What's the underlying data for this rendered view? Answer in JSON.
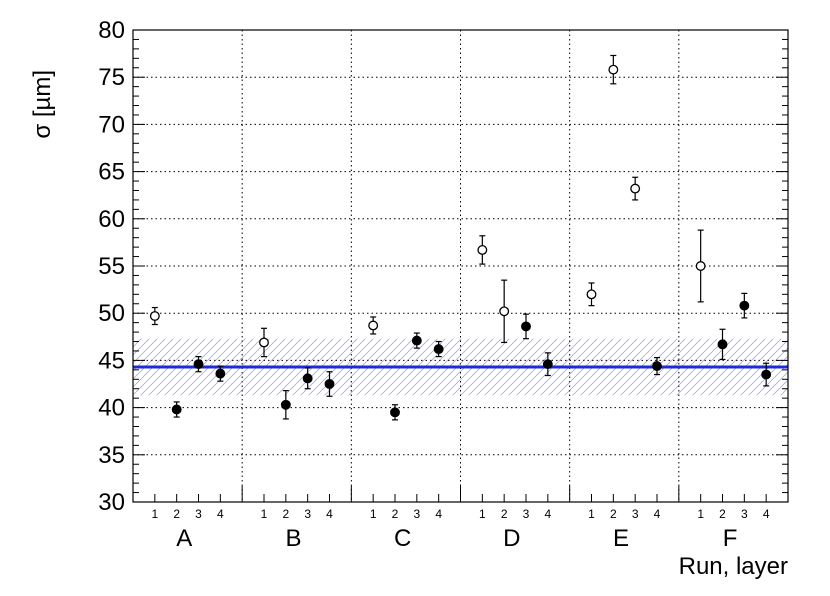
{
  "chart_data": {
    "type": "scatter",
    "ylabel": "σ [µm]",
    "xlabel": "Run, layer",
    "ylim": [
      30,
      80
    ],
    "yticks": [
      30,
      35,
      40,
      45,
      50,
      55,
      60,
      65,
      70,
      75,
      80
    ],
    "grid": true,
    "runs": [
      "A",
      "B",
      "C",
      "D",
      "E",
      "F"
    ],
    "layers": [
      "1",
      "2",
      "3",
      "4"
    ],
    "reference_line": {
      "value": 44.3,
      "band": [
        41.3,
        47.3
      ],
      "color": "#1f2bd6"
    },
    "series": [
      {
        "marker": "open",
        "points": [
          {
            "run": "A",
            "layer": 1,
            "y": 49.7,
            "err": 0.9
          },
          {
            "run": "B",
            "layer": 1,
            "y": 46.9,
            "err": 1.5
          },
          {
            "run": "C",
            "layer": 1,
            "y": 48.7,
            "err": 0.9
          },
          {
            "run": "D",
            "layer": 1,
            "y": 56.7,
            "err": 1.5
          },
          {
            "run": "D",
            "layer": 2,
            "y": 50.2,
            "err": 3.3
          },
          {
            "run": "E",
            "layer": 1,
            "y": 52.0,
            "err": 1.2
          },
          {
            "run": "E",
            "layer": 2,
            "y": 75.8,
            "err": 1.5
          },
          {
            "run": "E",
            "layer": 3,
            "y": 63.2,
            "err": 1.2
          },
          {
            "run": "F",
            "layer": 1,
            "y": 55.0,
            "err": 3.8
          }
        ]
      },
      {
        "marker": "filled",
        "points": [
          {
            "run": "A",
            "layer": 2,
            "y": 39.8,
            "err": 0.8
          },
          {
            "run": "A",
            "layer": 3,
            "y": 44.6,
            "err": 0.8
          },
          {
            "run": "A",
            "layer": 4,
            "y": 43.6,
            "err": 0.8
          },
          {
            "run": "B",
            "layer": 2,
            "y": 40.3,
            "err": 1.5
          },
          {
            "run": "B",
            "layer": 3,
            "y": 43.1,
            "err": 1.1
          },
          {
            "run": "B",
            "layer": 4,
            "y": 42.5,
            "err": 1.3
          },
          {
            "run": "C",
            "layer": 2,
            "y": 39.5,
            "err": 0.8
          },
          {
            "run": "C",
            "layer": 3,
            "y": 47.1,
            "err": 0.8
          },
          {
            "run": "C",
            "layer": 4,
            "y": 46.2,
            "err": 0.8
          },
          {
            "run": "D",
            "layer": 3,
            "y": 48.6,
            "err": 1.3
          },
          {
            "run": "D",
            "layer": 4,
            "y": 44.6,
            "err": 1.2
          },
          {
            "run": "E",
            "layer": 4,
            "y": 44.4,
            "err": 0.9
          },
          {
            "run": "F",
            "layer": 2,
            "y": 46.7,
            "err": 1.6
          },
          {
            "run": "F",
            "layer": 3,
            "y": 50.8,
            "err": 1.3
          },
          {
            "run": "F",
            "layer": 4,
            "y": 43.5,
            "err": 1.2
          }
        ]
      }
    ]
  }
}
